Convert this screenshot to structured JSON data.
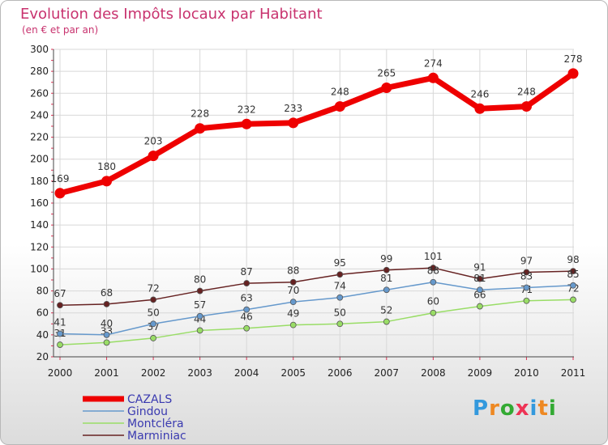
{
  "chart_data": {
    "type": "line",
    "title": "Evolution des Impôts locaux par Habitant",
    "subtitle": "(en € et par an)",
    "xlabel": "",
    "ylabel": "",
    "categories": [
      "2000",
      "2001",
      "2002",
      "2003",
      "2004",
      "2005",
      "2006",
      "2007",
      "2008",
      "2009",
      "2010",
      "2011"
    ],
    "ylim": [
      20,
      300
    ],
    "yticks": [
      20,
      40,
      60,
      80,
      100,
      120,
      140,
      160,
      180,
      200,
      220,
      240,
      260,
      280,
      300
    ],
    "grid": true,
    "series": [
      {
        "name": "CAZALS",
        "color": "#ee0000",
        "values": [
          169,
          180,
          203,
          228,
          232,
          233,
          248,
          265,
          274,
          246,
          248,
          278
        ]
      },
      {
        "name": "Gindou",
        "color": "#6699cc",
        "values": [
          41,
          40,
          50,
          57,
          63,
          70,
          74,
          81,
          88,
          81,
          83,
          85
        ]
      },
      {
        "name": "Montcléra",
        "color": "#99dd66",
        "values": [
          31,
          33,
          37,
          44,
          46,
          49,
          50,
          52,
          60,
          66,
          71,
          72
        ]
      },
      {
        "name": "Marminiac",
        "color": "#662222",
        "values": [
          67,
          68,
          72,
          80,
          87,
          88,
          95,
          99,
          101,
          91,
          97,
          98
        ]
      }
    ]
  },
  "brand": {
    "letters": [
      "P",
      "r",
      "o",
      "x",
      "i",
      "t",
      "i"
    ],
    "colors": [
      "#3399dd",
      "#ee8822",
      "#33aa33",
      "#ee3355",
      "#3399dd",
      "#ee8822",
      "#33aa33"
    ]
  }
}
